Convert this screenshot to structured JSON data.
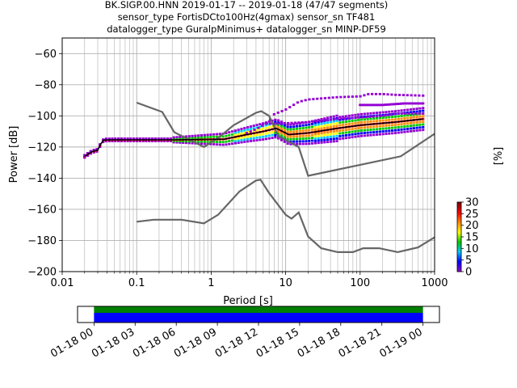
{
  "title_lines": [
    "BK.SIGP.00.HNN   2019-01-17 -- 2019-01-18  (47/47 segments)",
    "sensor_type FortisDCto100Hz(4gmax) sensor_sn TF481",
    "datalogger_type GuralpMinimus+ datalogger_sn MINP-DF59"
  ],
  "colors": {
    "noise_model": "#666666",
    "mode_line": "#000000",
    "colormap": [
      "#ffffff",
      "#9400d3",
      "#0000ff",
      "#00c8ff",
      "#00c800",
      "#ffff00",
      "#ff8c00",
      "#ff0000",
      "#800000"
    ],
    "availability_green": "#008000",
    "availability_blue": "#0000ff"
  },
  "chart_data": [
    {
      "type": "heatmap",
      "xlabel": "Period [s]",
      "ylabel": "Power [dB]",
      "x_scale": "log",
      "xlim": [
        0.01,
        1000
      ],
      "ylim": [
        -200,
        -50
      ],
      "x_ticks": [
        {
          "value": 0.01,
          "label": "0.01"
        },
        {
          "value": 0.1,
          "label": "0.1"
        },
        {
          "value": 1,
          "label": "1"
        },
        {
          "value": 10,
          "label": "10"
        },
        {
          "value": 100,
          "label": "100"
        },
        {
          "value": 1000,
          "label": "1000"
        }
      ],
      "y_ticks": [
        {
          "value": -60,
          "label": "−60"
        },
        {
          "value": -80,
          "label": "−80"
        },
        {
          "value": -100,
          "label": "−100"
        },
        {
          "value": -120,
          "label": "−120"
        },
        {
          "value": -140,
          "label": "−140"
        },
        {
          "value": -160,
          "label": "−160"
        },
        {
          "value": -180,
          "label": "−180"
        },
        {
          "value": -200,
          "label": "−200"
        }
      ],
      "grid": true,
      "colorbar": {
        "label": "[%]",
        "range": [
          0,
          30
        ],
        "ticks": [
          {
            "value": 0,
            "label": "0"
          },
          {
            "value": 5,
            "label": "5"
          },
          {
            "value": 10,
            "label": "10"
          },
          {
            "value": 15,
            "label": "15"
          },
          {
            "value": 20,
            "label": "20"
          },
          {
            "value": 25,
            "label": "25"
          },
          {
            "value": 30,
            "label": "30"
          }
        ]
      },
      "noise_models": [
        {
          "points": [
            [
              0.1,
              -91.5
            ],
            [
              0.22,
              -97.5
            ],
            [
              0.32,
              -110.5
            ],
            [
              0.8,
              -120
            ],
            [
              1.25,
              -114
            ],
            [
              2,
              -106
            ],
            [
              4,
              -98
            ],
            [
              4.7,
              -97
            ],
            [
              6,
              -100
            ],
            [
              8,
              -113
            ],
            [
              15,
              -120
            ],
            [
              20,
              -138.5
            ],
            [
              350,
              -126
            ],
            [
              1000,
              -111.5
            ]
          ]
        },
        {
          "points": [
            [
              0.1,
              -168
            ],
            [
              0.17,
              -166.7
            ],
            [
              0.4,
              -166.7
            ],
            [
              0.8,
              -169
            ],
            [
              1.24,
              -163.5
            ],
            [
              2.4,
              -148.5
            ],
            [
              4,
              -141.5
            ],
            [
              4.6,
              -141
            ],
            [
              6,
              -149.5
            ],
            [
              10,
              -163.5
            ],
            [
              12,
              -166
            ],
            [
              15,
              -162
            ],
            [
              20,
              -177.5
            ],
            [
              30,
              -185
            ],
            [
              50,
              -187.5
            ],
            [
              80,
              -187.5
            ],
            [
              110,
              -185
            ],
            [
              180,
              -185
            ],
            [
              320,
              -187.5
            ],
            [
              600,
              -184.5
            ],
            [
              1000,
              -178
            ]
          ]
        }
      ],
      "mode_line": [
        [
          0.02,
          -126
        ],
        [
          0.025,
          -123
        ],
        [
          0.03,
          -122
        ],
        [
          0.033,
          -118
        ],
        [
          0.036,
          -115.5
        ],
        [
          0.05,
          -115.4
        ],
        [
          0.3,
          -115.4
        ],
        [
          1.5,
          -115
        ],
        [
          3,
          -112
        ],
        [
          5,
          -110
        ],
        [
          7.5,
          -108
        ],
        [
          11,
          -112
        ],
        [
          20,
          -111
        ],
        [
          50,
          -108
        ],
        [
          100,
          -106
        ],
        [
          300,
          -104
        ],
        [
          700,
          -102
        ]
      ],
      "psd_upper_band": [
        [
          3,
          -111
        ],
        [
          4,
          -108.6
        ],
        [
          5,
          -106
        ],
        [
          6,
          -103.5
        ],
        [
          7,
          -99
        ],
        [
          10,
          -96
        ],
        [
          15,
          -91
        ],
        [
          20,
          -89.5
        ],
        [
          50,
          -88
        ],
        [
          100,
          -87.5
        ],
        [
          130,
          -86
        ],
        [
          200,
          -86
        ],
        [
          300,
          -86.5
        ],
        [
          700,
          -87
        ]
      ],
      "psd_second_band": [
        [
          5,
          -105
        ],
        [
          8,
          -105
        ],
        [
          20,
          -104
        ],
        [
          50,
          -102
        ],
        [
          100,
          -101
        ],
        [
          200,
          -100
        ],
        [
          300,
          -98.5
        ],
        [
          700,
          -98.5
        ]
      ],
      "psd_third_band": [
        [
          100,
          -93
        ],
        [
          200,
          -93
        ],
        [
          400,
          -92
        ],
        [
          700,
          -92
        ]
      ]
    },
    {
      "type": "bar",
      "title": "",
      "x_ticks": [
        {
          "value": 0,
          "label": "01-18 00"
        },
        {
          "value": 3,
          "label": "01-18 03"
        },
        {
          "value": 6,
          "label": "01-18 06"
        },
        {
          "value": 9,
          "label": "01-18 09"
        },
        {
          "value": 12,
          "label": "01-18 12"
        },
        {
          "value": 15,
          "label": "01-18 15"
        },
        {
          "value": 18,
          "label": "01-18 18"
        },
        {
          "value": 21,
          "label": "01-18 21"
        },
        {
          "value": 24,
          "label": "01-19 00"
        }
      ],
      "xlim": [
        -1.2,
        25.2
      ],
      "data_span": [
        0,
        24
      ],
      "gap_span": [
        0,
        24
      ]
    }
  ]
}
